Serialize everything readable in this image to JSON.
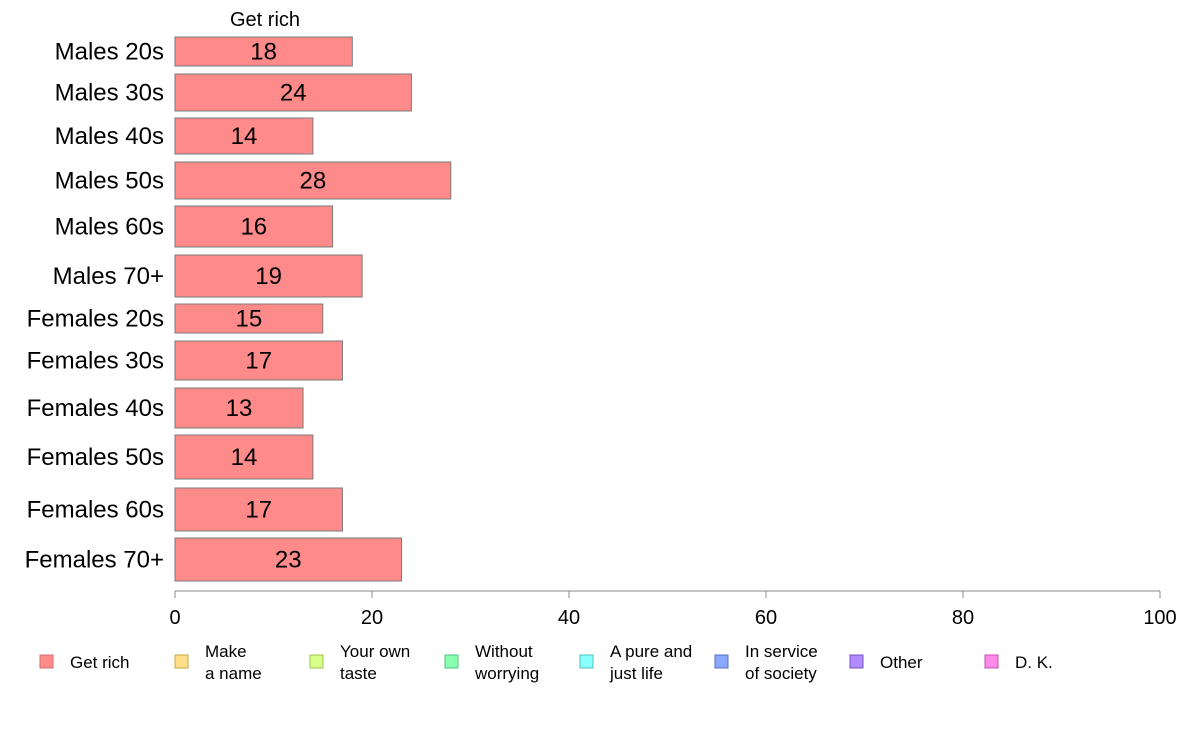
{
  "chart_data": {
    "type": "bar",
    "orientation": "horizontal",
    "column_title": "Get rich",
    "categories": [
      "Males 20s",
      "Males 30s",
      "Males 40s",
      "Males 50s",
      "Males 60s",
      "Males 70+",
      "Females 20s",
      "Females 30s",
      "Females 40s",
      "Females 50s",
      "Females 60s",
      "Females 70+"
    ],
    "series": [
      {
        "name": "Get rich",
        "color": "#ff8a8a",
        "values": [
          18,
          24,
          14,
          28,
          16,
          19,
          15,
          17,
          13,
          14,
          17,
          23
        ]
      }
    ],
    "value_labels": [
      "18",
      "24",
      "14",
      "28",
      "16",
      "19",
      "15",
      "17",
      "13",
      "14",
      "17",
      "23"
    ],
    "xlim": [
      0,
      100
    ],
    "xticks": [
      0,
      20,
      40,
      60,
      80,
      100
    ],
    "xtick_labels": [
      "0",
      "20",
      "40",
      "60",
      "80",
      "100"
    ],
    "grid": false,
    "legend_position": "bottom",
    "legend": [
      {
        "lines": [
          "Get rich"
        ],
        "color": "#ff8a8a",
        "stroke": "#d07070"
      },
      {
        "lines": [
          "Make",
          "a name"
        ],
        "color": "#ffe08a",
        "stroke": "#c8a840"
      },
      {
        "lines": [
          "Your own",
          "taste"
        ],
        "color": "#d8ff8a",
        "stroke": "#a0c050"
      },
      {
        "lines": [
          "Without",
          "worrying"
        ],
        "color": "#8affb0",
        "stroke": "#50c080"
      },
      {
        "lines": [
          "A pure and",
          "just life"
        ],
        "color": "#8affff",
        "stroke": "#50c0c0"
      },
      {
        "lines": [
          "In service",
          "of society"
        ],
        "color": "#8aa8ff",
        "stroke": "#5070c0"
      },
      {
        "lines": [
          "Other"
        ],
        "color": "#b08aff",
        "stroke": "#7850c0"
      },
      {
        "lines": [
          "D. K."
        ],
        "color": "#ff8ae8",
        "stroke": "#c050b0"
      }
    ]
  }
}
